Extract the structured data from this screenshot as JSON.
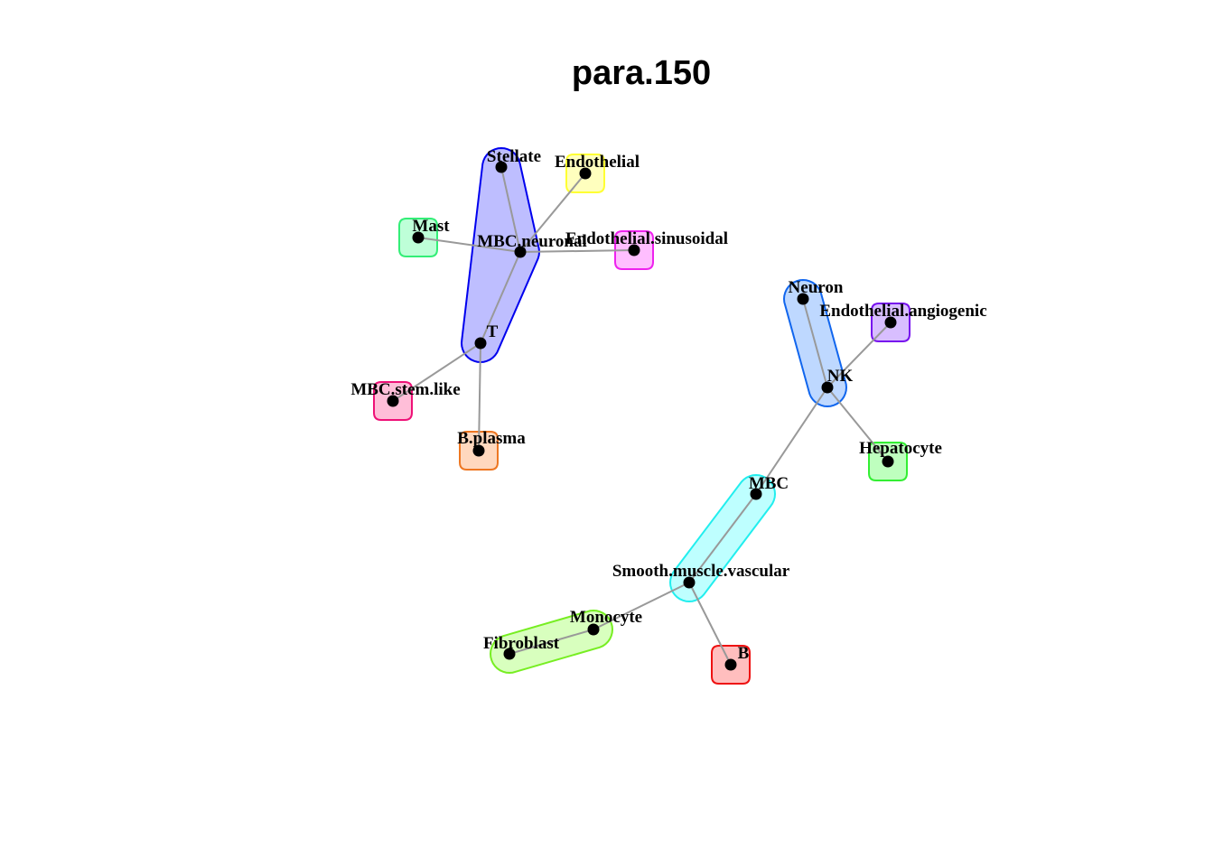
{
  "title": "para.150",
  "nodes": [
    {
      "id": "stellate",
      "label": "Stellate"
    },
    {
      "id": "endothelial",
      "label": "Endothelial"
    },
    {
      "id": "mast",
      "label": "Mast"
    },
    {
      "id": "mbc_neuronal",
      "label": "MBC.neuronal"
    },
    {
      "id": "endothelial_sinusoidal",
      "label": "Endothelial.sinusoidal"
    },
    {
      "id": "t",
      "label": "T"
    },
    {
      "id": "mbc_stem_like",
      "label": "MBC.stem.like"
    },
    {
      "id": "b_plasma",
      "label": "B.plasma"
    },
    {
      "id": "neuron",
      "label": "Neuron"
    },
    {
      "id": "endothelial_angiogenic",
      "label": "Endothelial.angiogenic"
    },
    {
      "id": "nk",
      "label": "NK"
    },
    {
      "id": "hepatocyte",
      "label": "Hepatocyte"
    },
    {
      "id": "mbc",
      "label": "MBC"
    },
    {
      "id": "smooth_muscle_vascular",
      "label": "Smooth.muscle.vascular"
    },
    {
      "id": "monocyte",
      "label": "Monocyte"
    },
    {
      "id": "fibroblast",
      "label": "Fibroblast"
    },
    {
      "id": "b",
      "label": "B"
    }
  ],
  "edges": [
    [
      "stellate",
      "mbc_neuronal"
    ],
    [
      "endothelial",
      "mbc_neuronal"
    ],
    [
      "mast",
      "mbc_neuronal"
    ],
    [
      "mbc_neuronal",
      "endothelial_sinusoidal"
    ],
    [
      "mbc_neuronal",
      "t"
    ],
    [
      "t",
      "mbc_stem_like"
    ],
    [
      "t",
      "b_plasma"
    ],
    [
      "neuron",
      "nk"
    ],
    [
      "endothelial_angiogenic",
      "nk"
    ],
    [
      "nk",
      "hepatocyte"
    ],
    [
      "nk",
      "mbc"
    ],
    [
      "mbc",
      "smooth_muscle_vascular"
    ],
    [
      "smooth_muscle_vascular",
      "monocyte"
    ],
    [
      "monocyte",
      "fibroblast"
    ],
    [
      "smooth_muscle_vascular",
      "b"
    ]
  ],
  "groups": [
    {
      "id": "group-t-cluster",
      "members": [
        "stellate",
        "mbc_neuronal",
        "t"
      ],
      "fill": "#b3b3ff",
      "stroke": "#0000ee"
    },
    {
      "id": "group-endothelial",
      "members": [
        "endothelial"
      ],
      "fill": "#ffffb3",
      "stroke": "#ffff33"
    },
    {
      "id": "group-mast",
      "members": [
        "mast"
      ],
      "fill": "#b3ffd1",
      "stroke": "#33ee77"
    },
    {
      "id": "group-endothelial-sinusoidal",
      "members": [
        "endothelial_sinusoidal"
      ],
      "fill": "#ffb3ff",
      "stroke": "#ee22ee"
    },
    {
      "id": "group-mbc-stem-like",
      "members": [
        "mbc_stem_like"
      ],
      "fill": "#ffb3d1",
      "stroke": "#ee1177"
    },
    {
      "id": "group-b-plasma",
      "members": [
        "b_plasma"
      ],
      "fill": "#ffd1b3",
      "stroke": "#ee7722"
    },
    {
      "id": "group-nk-cluster",
      "members": [
        "neuron",
        "nk"
      ],
      "fill": "#b3d1ff",
      "stroke": "#1166ee"
    },
    {
      "id": "group-endothelial-angiogenic",
      "members": [
        "endothelial_angiogenic"
      ],
      "fill": "#d1b3ff",
      "stroke": "#7711ee"
    },
    {
      "id": "group-hepatocyte",
      "members": [
        "hepatocyte"
      ],
      "fill": "#b3ffb3",
      "stroke": "#33ee33"
    },
    {
      "id": "group-mbc-cluster",
      "members": [
        "mbc",
        "smooth_muscle_vascular"
      ],
      "fill": "#b3ffff",
      "stroke": "#22eeee"
    },
    {
      "id": "group-monocyte-cluster",
      "members": [
        "monocyte",
        "fibroblast"
      ],
      "fill": "#d1ffb3",
      "stroke": "#77ee22"
    },
    {
      "id": "group-b",
      "members": [
        "b"
      ],
      "fill": "#ffb3b3",
      "stroke": "#ee1111"
    }
  ]
}
